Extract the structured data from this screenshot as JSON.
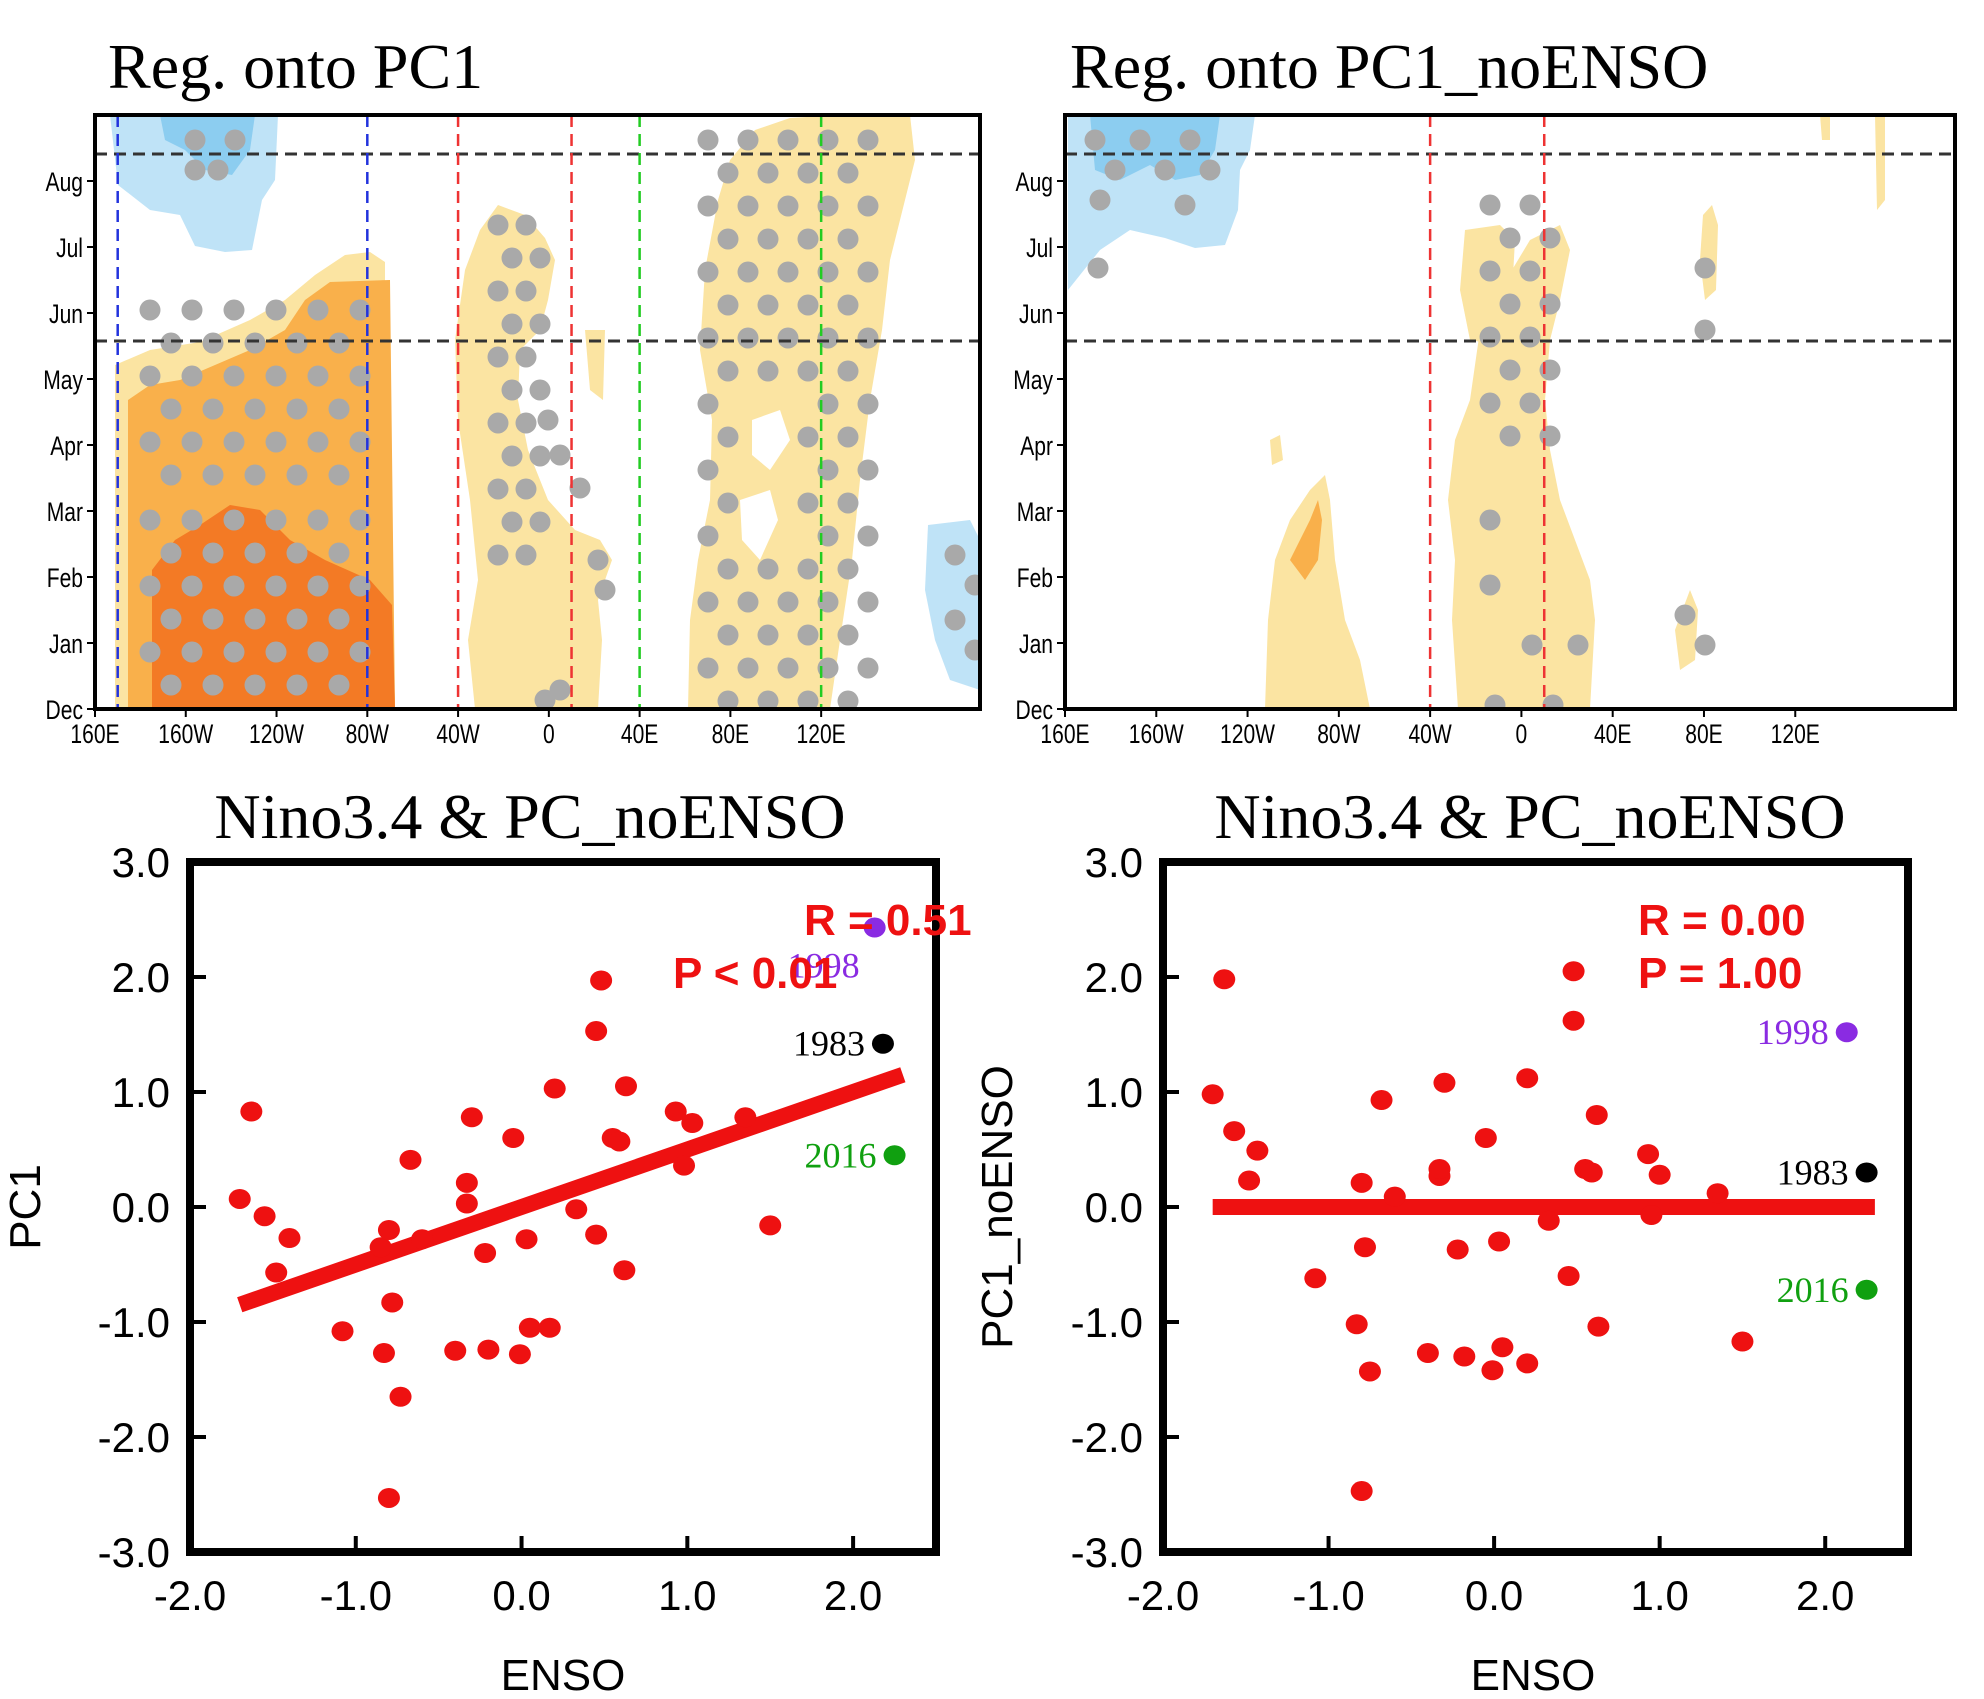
{
  "chart_data": [
    {
      "type": "heatmap",
      "title": "Reg. onto PC1",
      "x_ticks": [
        "160E",
        "160W",
        "120W",
        "80W",
        "40W",
        "0",
        "40E",
        "80E",
        "120E"
      ],
      "y_ticks": [
        "Dec",
        "Jan",
        "Feb",
        "Mar",
        "Apr",
        "May",
        "Jun",
        "Jul",
        "Aug"
      ],
      "xlim": [
        "160E",
        "190E"
      ],
      "ylim": [
        "Dec",
        "Sep"
      ],
      "horizontal_dashed_lines_month": [
        5.7,
        8.6
      ],
      "vertical_dashed_lines": [
        {
          "lon": "170E",
          "color": "#2233dd"
        },
        {
          "lon": "80W",
          "color": "#2233dd"
        },
        {
          "lon": "40W",
          "color": "#ee3333"
        },
        {
          "lon": "10E",
          "color": "#ee3333"
        },
        {
          "lon": "40E",
          "color": "#22cc22"
        },
        {
          "lon": "120E",
          "color": "#22cc22"
        }
      ],
      "colors": {
        "weak_pos": "#fbe4a2",
        "mid_pos": "#f9b04b",
        "strong_pos": "#f37a25",
        "weak_neg": "#bfe3f7",
        "mid_neg": "#8ccdf0",
        "stipple": "#a9a9a9"
      }
    },
    {
      "type": "heatmap",
      "title": "Reg. onto PC1_noENSO",
      "x_ticks": [
        "160E",
        "160W",
        "120W",
        "80W",
        "40W",
        "0",
        "40E",
        "80E",
        "120E"
      ],
      "y_ticks": [
        "Dec",
        "Jan",
        "Feb",
        "Mar",
        "Apr",
        "May",
        "Jun",
        "Jul",
        "Aug"
      ],
      "xlim": [
        "160E",
        "190E"
      ],
      "ylim": [
        "Dec",
        "Sep"
      ],
      "horizontal_dashed_lines_month": [
        5.7,
        8.6
      ],
      "vertical_dashed_lines": [
        {
          "lon": "40W",
          "color": "#ee3333"
        },
        {
          "lon": "10E",
          "color": "#ee3333"
        }
      ],
      "colors": {
        "weak_pos": "#fbe4a2",
        "mid_pos": "#f9b04b",
        "weak_neg": "#bfe3f7",
        "mid_neg": "#8ccdf0",
        "stipple": "#a9a9a9"
      }
    },
    {
      "type": "scatter",
      "title": "Nino3.4 & PC_noENSO",
      "xlabel": "ENSO",
      "ylabel": "PC1",
      "xlim": [
        -2.0,
        2.5
      ],
      "ylim": [
        -3.0,
        3.0
      ],
      "x_ticks": [
        "-2.0",
        "-1.0",
        "0.0",
        "1.0",
        "2.0"
      ],
      "y_ticks": [
        "3.0",
        "2.0",
        "1.0",
        "0.0",
        "-1.0",
        "-2.0",
        "-3.0"
      ],
      "stat_lines": [
        "R =  0.51",
        "P < 0.01"
      ],
      "fit_line": {
        "x": [
          -1.7,
          2.3
        ],
        "y": [
          -0.85,
          1.15
        ]
      },
      "points": [
        {
          "x": -1.7,
          "y": 0.07
        },
        {
          "x": -1.63,
          "y": 0.83
        },
        {
          "x": -1.55,
          "y": -0.08
        },
        {
          "x": -1.48,
          "y": -0.57
        },
        {
          "x": -1.4,
          "y": -0.27
        },
        {
          "x": -1.08,
          "y": -1.08
        },
        {
          "x": -0.85,
          "y": -0.35
        },
        {
          "x": -0.83,
          "y": -1.27
        },
        {
          "x": -0.8,
          "y": -0.2
        },
        {
          "x": -0.78,
          "y": -0.83
        },
        {
          "x": -0.8,
          "y": -2.53
        },
        {
          "x": -0.73,
          "y": -1.65
        },
        {
          "x": -0.67,
          "y": 0.41
        },
        {
          "x": -0.6,
          "y": -0.28
        },
        {
          "x": -0.4,
          "y": -1.25
        },
        {
          "x": -0.33,
          "y": 0.03
        },
        {
          "x": -0.33,
          "y": 0.21
        },
        {
          "x": -0.3,
          "y": 0.78
        },
        {
          "x": -0.22,
          "y": -0.4
        },
        {
          "x": -0.2,
          "y": -1.24
        },
        {
          "x": -0.05,
          "y": 0.6
        },
        {
          "x": -0.01,
          "y": -1.28
        },
        {
          "x": 0.03,
          "y": -0.28
        },
        {
          "x": 0.05,
          "y": -1.05
        },
        {
          "x": 0.17,
          "y": -1.05
        },
        {
          "x": 0.2,
          "y": 1.03
        },
        {
          "x": 0.33,
          "y": -0.02
        },
        {
          "x": 0.45,
          "y": -0.24
        },
        {
          "x": 0.45,
          "y": 1.53
        },
        {
          "x": 0.48,
          "y": 1.97
        },
        {
          "x": 0.55,
          "y": 0.6
        },
        {
          "x": 0.59,
          "y": 0.57
        },
        {
          "x": 0.62,
          "y": -0.55
        },
        {
          "x": 0.63,
          "y": 1.05
        },
        {
          "x": 0.93,
          "y": 0.83
        },
        {
          "x": 0.98,
          "y": 0.36
        },
        {
          "x": 1.03,
          "y": 0.73
        },
        {
          "x": 1.35,
          "y": 0.78
        },
        {
          "x": 1.5,
          "y": -0.16
        }
      ],
      "highlights": [
        {
          "label": "1998",
          "x": 2.13,
          "y": 2.43,
          "color": "#8a2be2"
        },
        {
          "label": "1983",
          "x": 2.18,
          "y": 1.42,
          "color": "#000000"
        },
        {
          "label": "2016",
          "x": 2.25,
          "y": 0.45,
          "color": "#10a010"
        }
      ]
    },
    {
      "type": "scatter",
      "title": "Nino3.4 & PC_noENSO",
      "xlabel": "ENSO",
      "ylabel": "PC1_noENSO",
      "xlim": [
        -2.0,
        2.5
      ],
      "ylim": [
        -3.0,
        3.0
      ],
      "x_ticks": [
        "-2.0",
        "-1.0",
        "0.0",
        "1.0",
        "2.0"
      ],
      "y_ticks": [
        "3.0",
        "2.0",
        "1.0",
        "0.0",
        "-1.0",
        "-2.0",
        "-3.0"
      ],
      "stat_lines": [
        "R =  0.00",
        "P =  1.00"
      ],
      "fit_line": {
        "x": [
          -1.7,
          2.3
        ],
        "y": [
          0.0,
          0.0
        ]
      },
      "points": [
        {
          "x": -1.7,
          "y": 0.98
        },
        {
          "x": -1.63,
          "y": 1.98
        },
        {
          "x": -1.57,
          "y": 0.66
        },
        {
          "x": -1.48,
          "y": 0.23
        },
        {
          "x": -1.43,
          "y": 0.49
        },
        {
          "x": -1.08,
          "y": -0.62
        },
        {
          "x": -0.83,
          "y": -1.02
        },
        {
          "x": -0.8,
          "y": 0.21
        },
        {
          "x": -0.8,
          "y": -2.47
        },
        {
          "x": -0.78,
          "y": -0.35
        },
        {
          "x": -0.75,
          "y": -1.43
        },
        {
          "x": -0.68,
          "y": 0.93
        },
        {
          "x": -0.6,
          "y": 0.09
        },
        {
          "x": -0.4,
          "y": -1.27
        },
        {
          "x": -0.33,
          "y": 0.27
        },
        {
          "x": -0.33,
          "y": 0.33
        },
        {
          "x": -0.3,
          "y": 1.08
        },
        {
          "x": -0.22,
          "y": -0.37
        },
        {
          "x": -0.18,
          "y": -1.3
        },
        {
          "x": -0.05,
          "y": 0.6
        },
        {
          "x": -0.01,
          "y": -1.42
        },
        {
          "x": 0.03,
          "y": -0.3
        },
        {
          "x": 0.05,
          "y": -1.22
        },
        {
          "x": 0.2,
          "y": -1.36
        },
        {
          "x": 0.2,
          "y": 1.12
        },
        {
          "x": 0.33,
          "y": -0.12
        },
        {
          "x": 0.45,
          "y": -0.6
        },
        {
          "x": 0.48,
          "y": 2.05
        },
        {
          "x": 0.48,
          "y": 1.62
        },
        {
          "x": 0.55,
          "y": 0.33
        },
        {
          "x": 0.59,
          "y": 0.3
        },
        {
          "x": 0.62,
          "y": 0.8
        },
        {
          "x": 0.63,
          "y": -1.04
        },
        {
          "x": 0.93,
          "y": 0.46
        },
        {
          "x": 0.95,
          "y": -0.07
        },
        {
          "x": 1.0,
          "y": 0.28
        },
        {
          "x": 1.35,
          "y": 0.12
        },
        {
          "x": 1.5,
          "y": -1.17
        }
      ],
      "highlights": [
        {
          "label": "1998",
          "x": 2.13,
          "y": 1.52,
          "color": "#8a2be2"
        },
        {
          "label": "1983",
          "x": 2.25,
          "y": 0.3,
          "color": "#000000"
        },
        {
          "label": "2016",
          "x": 2.25,
          "y": -0.72,
          "color": "#10a010"
        }
      ]
    }
  ]
}
